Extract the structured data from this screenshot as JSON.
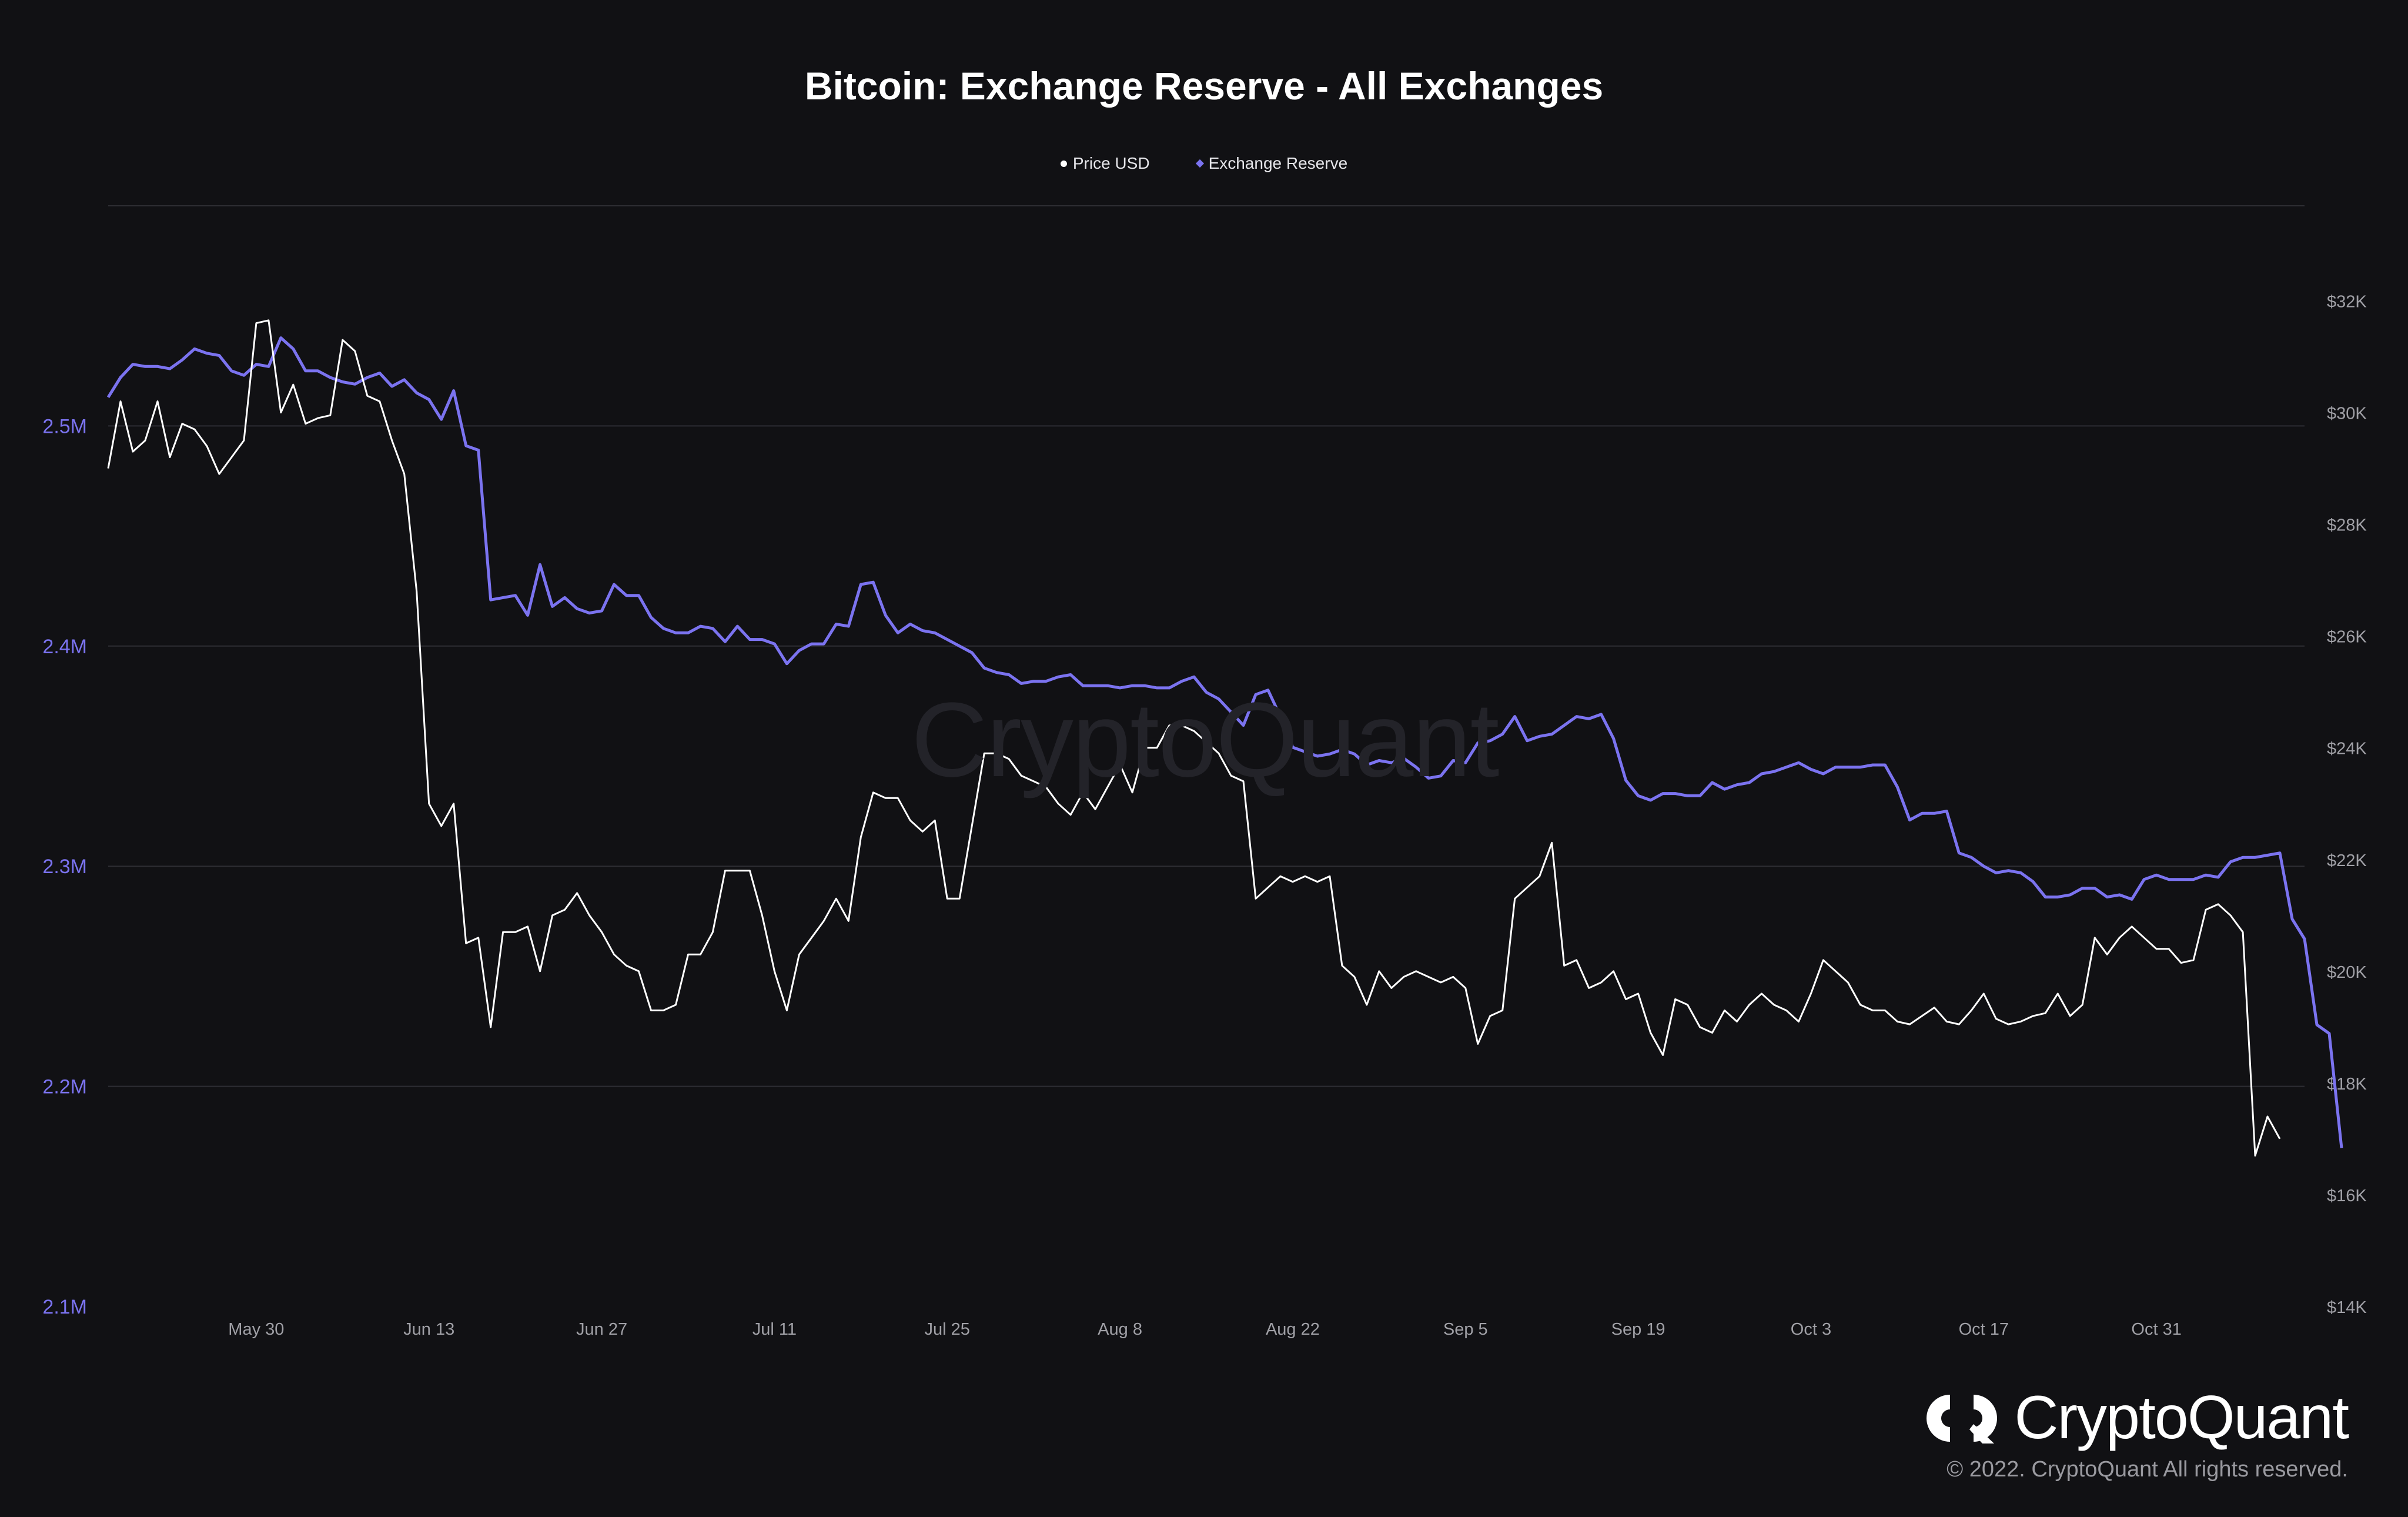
{
  "title": "Bitcoin: Exchange Reserve - All Exchanges",
  "legend": {
    "price_label": "Price USD",
    "reserve_label": "Exchange Reserve"
  },
  "watermark": "CryptoQuant",
  "brand": {
    "name": "CryptoQuant",
    "copyright": "© 2022. CryptoQuant All rights reserved."
  },
  "colors": {
    "background": "#111114",
    "price": "#ffffff",
    "reserve": "#7b73f0",
    "left_axis_text": "#7b73f0",
    "right_axis_text": "#a0a0a6",
    "grid": "#2e2e33"
  },
  "chart_data": {
    "type": "line",
    "title": "Bitcoin: Exchange Reserve - All Exchanges",
    "x_ticks": [
      "May 30",
      "Jun 13",
      "Jun 27",
      "Jul 11",
      "Jul 25",
      "Aug 8",
      "Aug 22",
      "Sep 5",
      "Sep 19",
      "Oct 3",
      "Oct 17",
      "Oct 31"
    ],
    "x_tick_day_index": [
      13,
      27,
      41,
      55,
      69,
      83,
      97,
      111,
      125,
      139,
      153,
      167
    ],
    "day_range": [
      1,
      179
    ],
    "left_axis": {
      "ticks": [
        "2.1M",
        "2.2M",
        "2.3M",
        "2.4M",
        "2.5M"
      ],
      "tick_values": [
        2100000,
        2200000,
        2300000,
        2400000,
        2500000
      ],
      "range": [
        2100000,
        2600000
      ]
    },
    "right_axis": {
      "ticks": [
        "$14K",
        "$16K",
        "$18K",
        "$20K",
        "$22K",
        "$24K",
        "$26K",
        "$28K",
        "$30K",
        "$32K"
      ],
      "tick_values": [
        14000,
        16000,
        18000,
        20000,
        22000,
        24000,
        26000,
        28000,
        30000,
        32000
      ],
      "range": [
        14000,
        33700
      ]
    },
    "series": [
      {
        "name": "Exchange Reserve",
        "axis": "left",
        "step_days": 1,
        "values": [
          2513000,
          2522000,
          2528000,
          2527000,
          2527000,
          2526000,
          2530000,
          2535000,
          2533000,
          2532000,
          2525000,
          2523000,
          2528000,
          2527000,
          2540000,
          2535000,
          2525000,
          2525000,
          2522000,
          2520000,
          2519000,
          2522000,
          2524000,
          2518000,
          2521000,
          2515000,
          2512000,
          2503000,
          2516000,
          2491000,
          2489000,
          2421000,
          2422000,
          2423000,
          2414000,
          2437000,
          2418000,
          2422000,
          2417000,
          2415000,
          2416000,
          2428000,
          2423000,
          2423000,
          2413000,
          2408000,
          2406000,
          2406000,
          2409000,
          2408000,
          2402000,
          2409000,
          2403000,
          2403000,
          2401000,
          2392000,
          2398000,
          2401000,
          2401000,
          2410000,
          2409000,
          2428000,
          2429000,
          2414000,
          2406000,
          2410000,
          2407000,
          2406000,
          2403000,
          2400000,
          2397000,
          2390000,
          2388000,
          2387000,
          2383000,
          2384000,
          2384000,
          2386000,
          2387000,
          2382000,
          2382000,
          2382000,
          2381000,
          2382000,
          2382000,
          2381000,
          2381000,
          2384000,
          2386000,
          2379000,
          2376000,
          2370000,
          2364000,
          2378000,
          2380000,
          2368000,
          2354000,
          2352000,
          2350000,
          2351000,
          2353000,
          2351000,
          2346000,
          2348000,
          2347000,
          2349000,
          2345000,
          2340000,
          2341000,
          2348000,
          2347000,
          2356000,
          2357000,
          2360000,
          2368000,
          2357000,
          2359000,
          2360000,
          2364000,
          2368000,
          2367000,
          2369000,
          2358000,
          2339000,
          2332000,
          2330000,
          2333000,
          2333000,
          2332000,
          2332000,
          2338000,
          2335000,
          2337000,
          2338000,
          2342000,
          2343000,
          2345000,
          2347000,
          2344000,
          2342000,
          2345000,
          2345000,
          2345000,
          2346000,
          2346000,
          2336000,
          2321000,
          2324000,
          2324000,
          2325000,
          2306000,
          2304000,
          2300000,
          2297000,
          2298000,
          2297000,
          2293000,
          2286000,
          2286000,
          2287000,
          2290000,
          2290000,
          2286000,
          2287000,
          2285000,
          2294000,
          2296000,
          2294000,
          2294000,
          2294000,
          2296000,
          2295000,
          2302000,
          2304000,
          2304000,
          2305000,
          2306000,
          2276000,
          2267000,
          2228000,
          2224000,
          2172000
        ]
      },
      {
        "name": "Price USD",
        "axis": "right",
        "step_days": 1,
        "values": [
          29000,
          30200,
          29300,
          29500,
          30200,
          29200,
          29800,
          29700,
          29400,
          28900,
          29200,
          29500,
          31600,
          31650,
          30000,
          30500,
          29800,
          29900,
          29950,
          31300,
          31100,
          30300,
          30200,
          29500,
          28900,
          26800,
          23000,
          22600,
          23000,
          20500,
          20600,
          19000,
          20700,
          20700,
          20800,
          20000,
          21000,
          21100,
          21400,
          21000,
          20700,
          20300,
          20100,
          20000,
          19300,
          19300,
          19400,
          20300,
          20300,
          20700,
          21800,
          21800,
          21800,
          21000,
          20000,
          19300,
          20300,
          20600,
          20900,
          21300,
          20900,
          22400,
          23200,
          23100,
          23100,
          22700,
          22500,
          22700,
          21300,
          21300,
          22600,
          23900,
          23900,
          23800,
          23500,
          23400,
          23300,
          23000,
          22800,
          23200,
          22900,
          23300,
          23700,
          23200,
          24000,
          24000,
          24400,
          24400,
          24300,
          24100,
          23900,
          23500,
          23400,
          21300,
          21500,
          21700,
          21600,
          21700,
          21600,
          21700,
          20100,
          19900,
          19400,
          20000,
          19700,
          19900,
          20000,
          19900,
          19800,
          19900,
          19700,
          18700,
          19200,
          19300,
          21300,
          21500,
          21700,
          22300,
          20100,
          20200,
          19700,
          19800,
          20000,
          19500,
          19600,
          18900,
          18500,
          19500,
          19400,
          19000,
          18900,
          19300,
          19100,
          19400,
          19600,
          19400,
          19300,
          19100,
          19600,
          20200,
          20000,
          19800,
          19400,
          19300,
          19300,
          19100,
          19050,
          19200,
          19350,
          19100,
          19050,
          19300,
          19600,
          19150,
          19050,
          19100,
          19200,
          19250,
          19600,
          19200,
          19400,
          20600,
          20300,
          20600,
          20800,
          20600,
          20400,
          20400,
          20150,
          20200,
          21100,
          21200,
          21000,
          20700,
          16700,
          17400,
          17000
        ]
      }
    ]
  }
}
